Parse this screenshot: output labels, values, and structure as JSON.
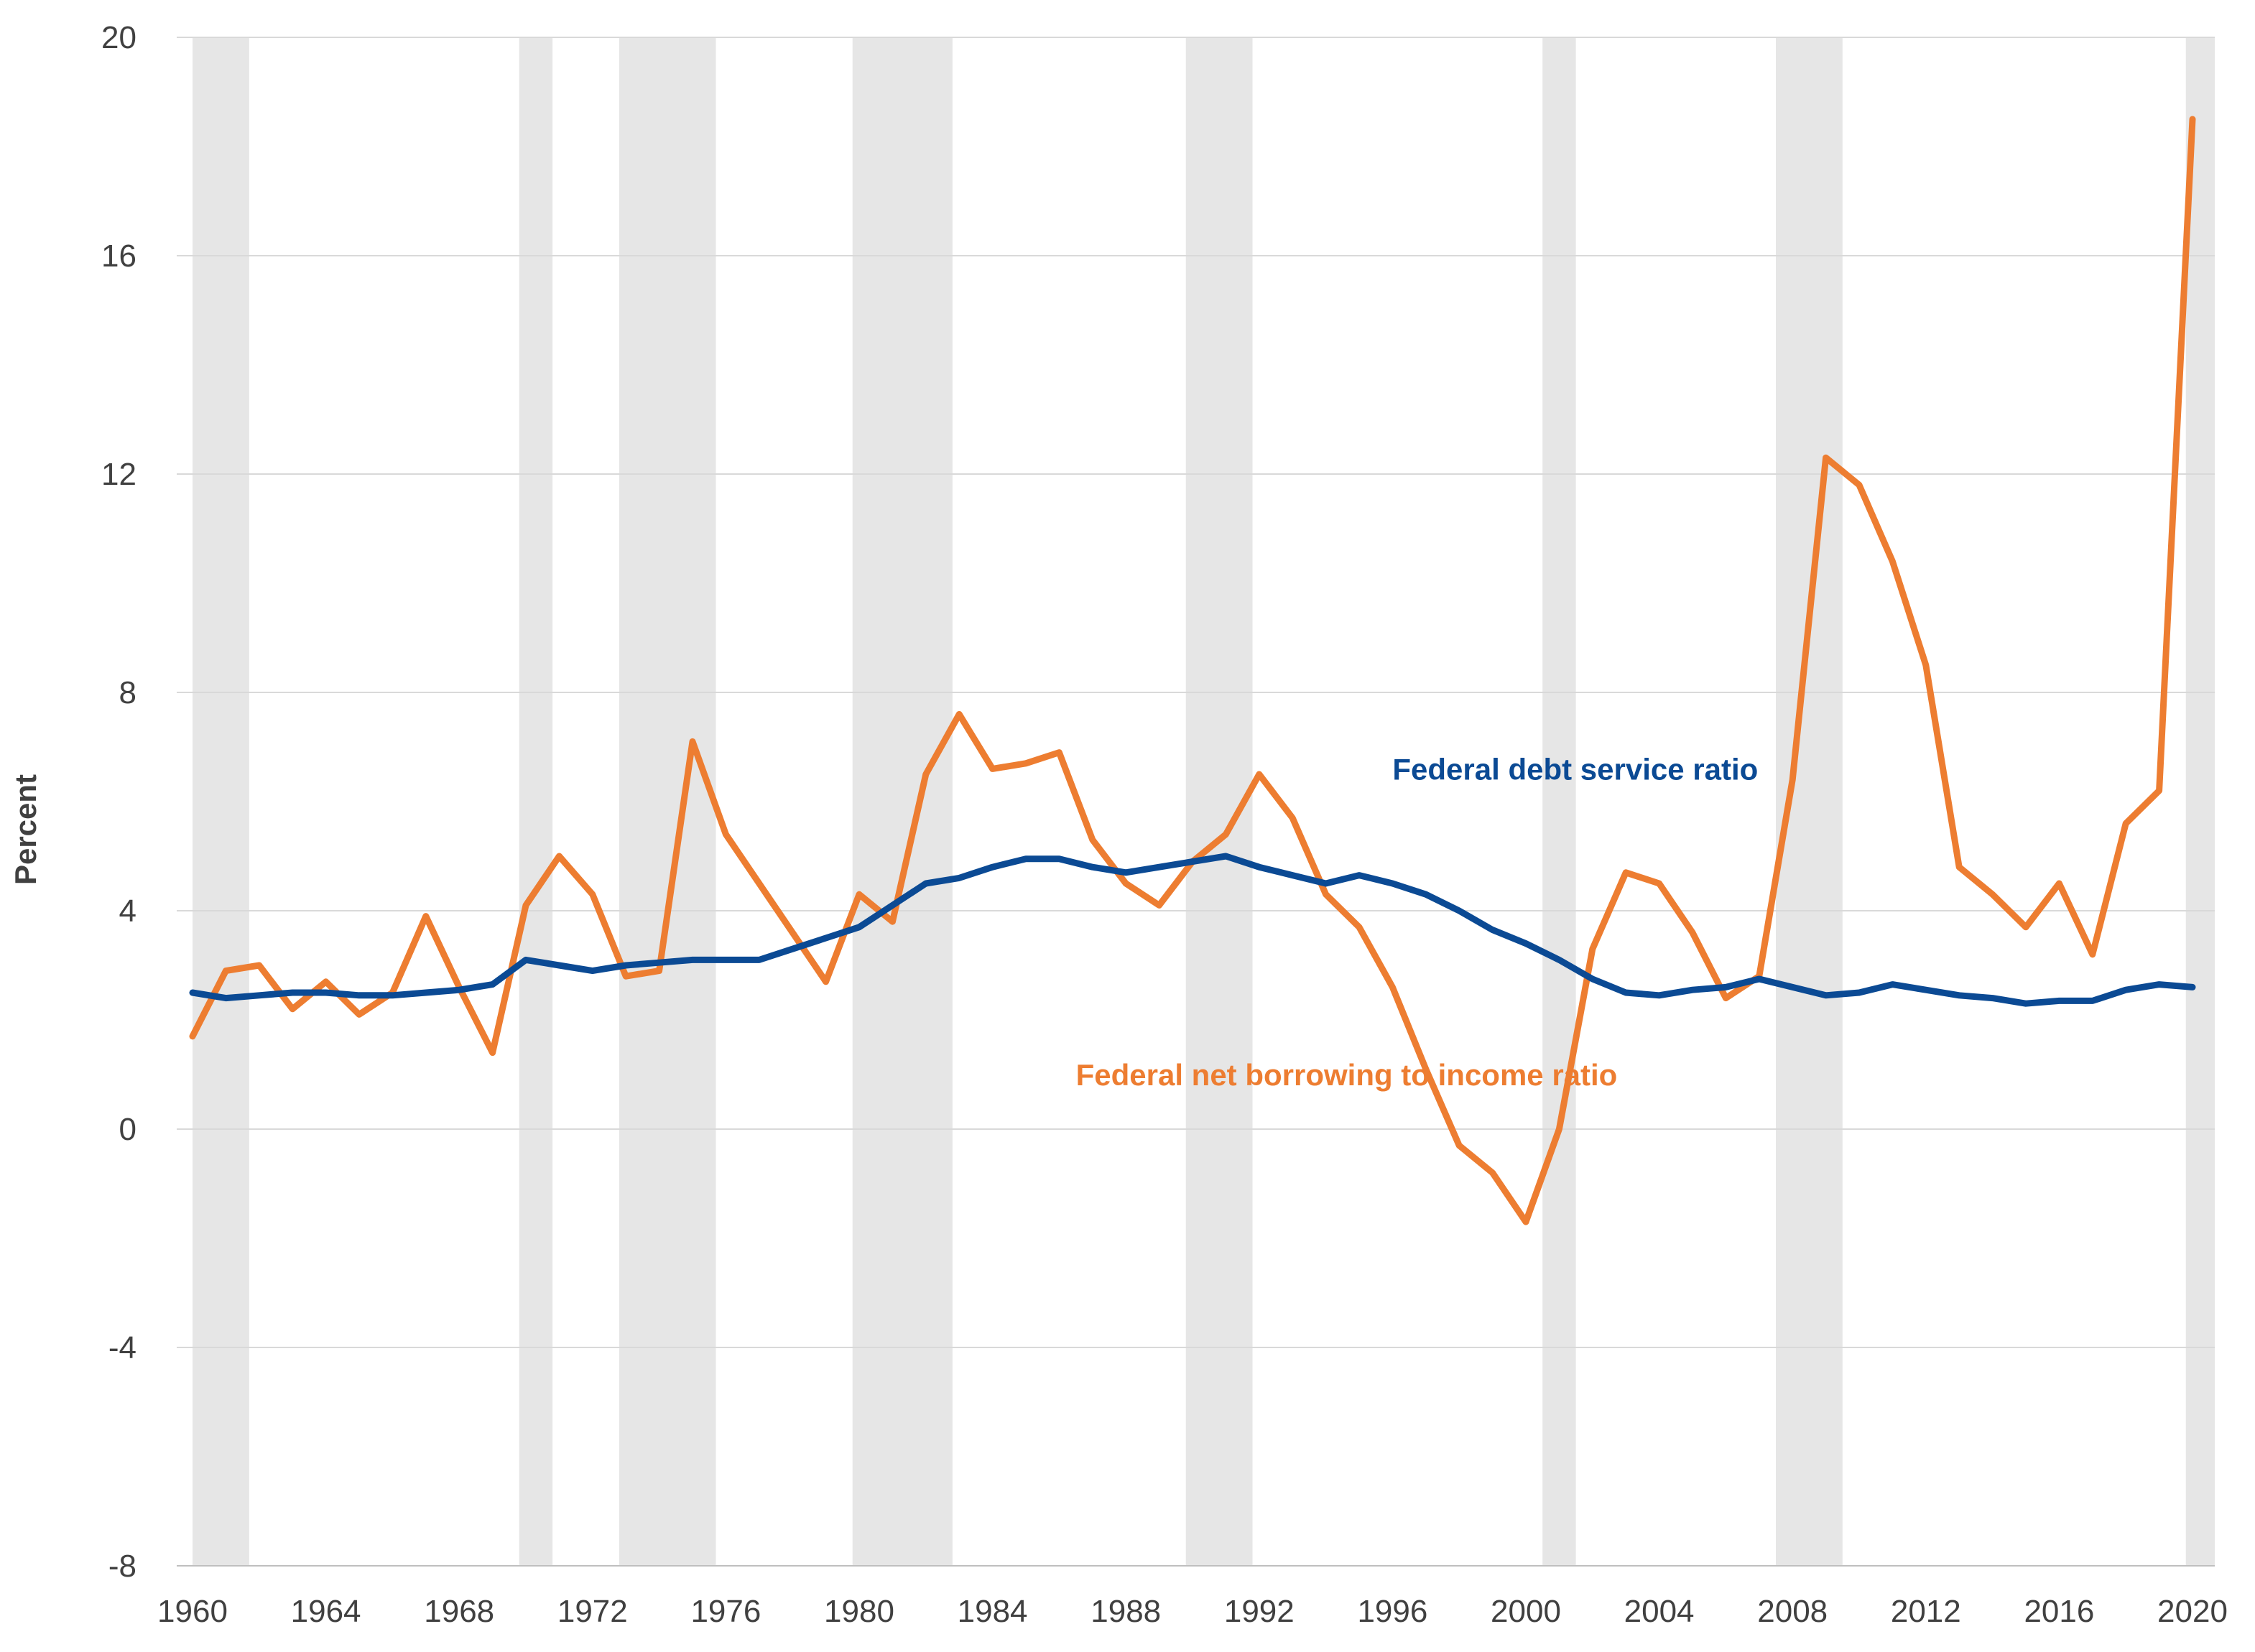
{
  "chart_data": {
    "type": "line",
    "title": "",
    "xlabel": "",
    "ylabel": "Percent",
    "xlim": [
      1960,
      2020
    ],
    "ylim": [
      -8,
      20
    ],
    "y_ticks": [
      -8,
      -4,
      0,
      4,
      8,
      12,
      16,
      20
    ],
    "x_ticks": [
      1960,
      1964,
      1968,
      1972,
      1976,
      1980,
      1984,
      1988,
      1992,
      1996,
      2000,
      2004,
      2008,
      2012,
      2016,
      2020
    ],
    "grid": "horizontal",
    "legend": "none",
    "recession_shading_color": "#e6e6e6",
    "recessions": [
      [
        1960.0,
        1961.7
      ],
      [
        1969.8,
        1970.8
      ],
      [
        1972.8,
        1975.7
      ],
      [
        1979.8,
        1982.8
      ],
      [
        1989.8,
        1991.8
      ],
      [
        2000.5,
        2001.5
      ],
      [
        2007.5,
        2009.5
      ],
      [
        2019.8,
        2020.8
      ]
    ],
    "x": [
      1960,
      1961,
      1962,
      1963,
      1964,
      1965,
      1966,
      1967,
      1968,
      1969,
      1970,
      1971,
      1972,
      1973,
      1974,
      1975,
      1976,
      1977,
      1978,
      1979,
      1980,
      1981,
      1982,
      1983,
      1984,
      1985,
      1986,
      1987,
      1988,
      1989,
      1990,
      1991,
      1992,
      1993,
      1994,
      1995,
      1996,
      1997,
      1998,
      1999,
      2000,
      2001,
      2002,
      2003,
      2004,
      2005,
      2006,
      2007,
      2008,
      2009,
      2010,
      2011,
      2012,
      2013,
      2014,
      2015,
      2016,
      2017,
      2018,
      2019,
      2020
    ],
    "series": [
      {
        "name": "Federal net borrowing to income ratio",
        "color": "#ed7d31",
        "values": [
          1.7,
          2.9,
          3.0,
          2.2,
          2.7,
          2.1,
          2.5,
          3.9,
          2.6,
          1.4,
          4.1,
          5.0,
          4.3,
          2.8,
          2.9,
          7.1,
          5.4,
          4.5,
          3.6,
          2.7,
          4.3,
          3.8,
          6.5,
          7.6,
          6.6,
          6.7,
          6.9,
          5.3,
          4.5,
          4.1,
          4.9,
          5.4,
          6.5,
          5.7,
          4.3,
          3.7,
          2.6,
          1.1,
          -0.3,
          -0.8,
          -1.7,
          0.0,
          3.3,
          4.7,
          4.5,
          3.6,
          2.4,
          2.8,
          6.4,
          12.3,
          11.8,
          10.4,
          8.5,
          4.8,
          4.3,
          3.7,
          4.5,
          3.2,
          5.6,
          6.2,
          18.5
        ]
      },
      {
        "name": "Federal debt service ratio",
        "color": "#0b4a94",
        "values": [
          2.5,
          2.4,
          2.45,
          2.5,
          2.5,
          2.45,
          2.45,
          2.5,
          2.55,
          2.65,
          3.1,
          3.0,
          2.9,
          3.0,
          3.05,
          3.1,
          3.1,
          3.1,
          3.3,
          3.5,
          3.7,
          4.1,
          4.5,
          4.6,
          4.8,
          4.95,
          4.95,
          4.8,
          4.7,
          4.8,
          4.9,
          5.0,
          4.8,
          4.65,
          4.5,
          4.65,
          4.5,
          4.3,
          4.0,
          3.65,
          3.4,
          3.1,
          2.75,
          2.5,
          2.45,
          2.55,
          2.6,
          2.75,
          2.6,
          2.45,
          2.5,
          2.65,
          2.55,
          2.45,
          2.4,
          2.3,
          2.35,
          2.35,
          2.55,
          2.65,
          2.6
        ]
      }
    ],
    "annotations": [
      {
        "text": "Federal debt service ratio",
        "x": 1996,
        "y": 6.4,
        "color": "#0b4a94"
      },
      {
        "text": "Federal net borrowing to income ratio",
        "x": 1986.5,
        "y": 0.8,
        "color": "#ed7d31"
      }
    ]
  }
}
